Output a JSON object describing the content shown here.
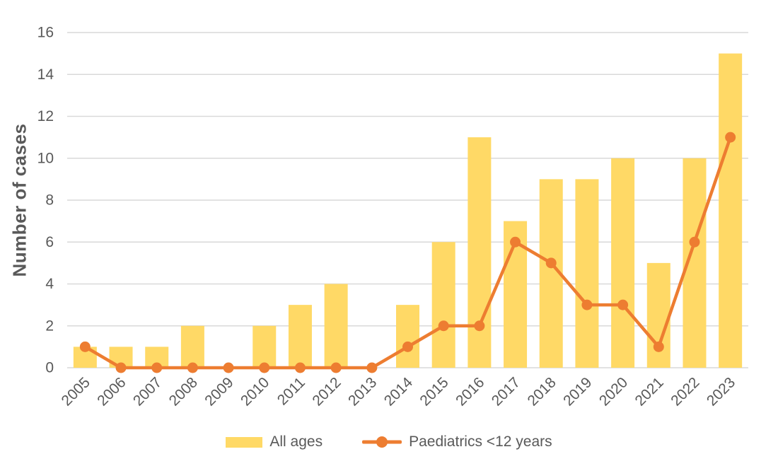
{
  "chart_data": {
    "type": "combo",
    "title": "",
    "xlabel": "",
    "ylabel": "Number of cases",
    "categories": [
      "2005",
      "2006",
      "2007",
      "2008",
      "2009",
      "2010",
      "2011",
      "2012",
      "2013",
      "2014",
      "2015",
      "2016",
      "2017",
      "2018",
      "2019",
      "2020",
      "2021",
      "2022",
      "2023"
    ],
    "series": [
      {
        "name": "All ages",
        "type": "bar",
        "color": "#FFD966",
        "values": [
          1,
          1,
          1,
          2,
          0,
          2,
          3,
          4,
          0,
          3,
          6,
          11,
          7,
          9,
          9,
          10,
          5,
          10,
          15
        ]
      },
      {
        "name": "Paediatrics <12 years",
        "type": "line",
        "color": "#ED7D31",
        "values": [
          1,
          0,
          0,
          0,
          0,
          0,
          0,
          0,
          0,
          1,
          2,
          2,
          6,
          5,
          3,
          3,
          1,
          6,
          11
        ]
      }
    ],
    "ylim": [
      0,
      16
    ],
    "ytick_step": 2,
    "yticks": [
      0,
      2,
      4,
      6,
      8,
      10,
      12,
      14,
      16
    ],
    "grid": true,
    "legend_position": "bottom",
    "gridline_color": "#D9D9D9",
    "tick_color": "#595959"
  }
}
